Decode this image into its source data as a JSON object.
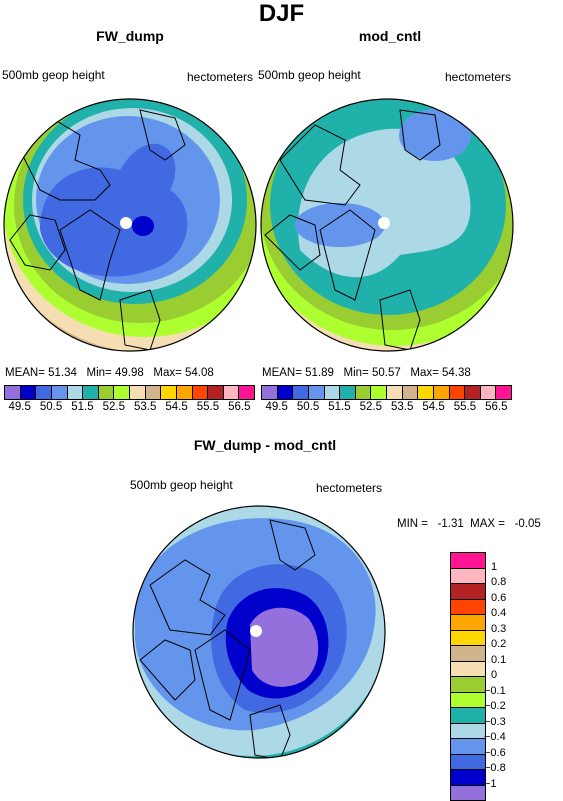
{
  "title": "DJF",
  "panels": [
    {
      "name": "FW_dump",
      "left_label": "500mb geop height",
      "right_label": "hectometers",
      "stats": {
        "mean_label": "MEAN=",
        "mean": "51.34",
        "min_label": "Min=",
        "min": "49.98",
        "max_label": "Max=",
        "max": "54.08"
      }
    },
    {
      "name": "mod_cntl",
      "left_label": "500mb geop height",
      "right_label": "hectometers",
      "stats": {
        "mean_label": "MEAN=",
        "mean": "51.89",
        "min_label": "Min=",
        "min": "50.57",
        "max_label": "Max=",
        "max": "54.38"
      }
    },
    {
      "name": "FW_dump - mod_cntl",
      "left_label": "500mb geop height",
      "right_label": "hectometers",
      "stats_text": "MIN =   -1.31  MAX =   -0.05"
    }
  ],
  "top_colorbar": {
    "colors": [
      "#9370db",
      "#0000cd",
      "#4169e1",
      "#6495ed",
      "#add8e6",
      "#20b2aa",
      "#9acd32",
      "#adff2f",
      "#f5deb3",
      "#d2b48c",
      "#ffd700",
      "#ffa500",
      "#ff4500",
      "#b22222",
      "#ffb6c1",
      "#ff1493"
    ],
    "labels": [
      "49.5",
      "50.5",
      "51.5",
      "52.5",
      "53.5",
      "54.5",
      "55.5",
      "56.5"
    ]
  },
  "diff_colorbar": {
    "colors_top_to_bottom": [
      "#ff1493",
      "#ffb6c1",
      "#b22222",
      "#ff4500",
      "#ffa500",
      "#ffd700",
      "#d2b48c",
      "#f5deb3",
      "#9acd32",
      "#adff2f",
      "#20b2aa",
      "#add8e6",
      "#6495ed",
      "#4169e1",
      "#0000cd",
      "#9370db"
    ],
    "labels_top_to_bottom": [
      "1",
      "0.8",
      "0.6",
      "0.4",
      "0.3",
      "0.2",
      "0.1",
      "0",
      "−0.1",
      "−0.2",
      "−0.3",
      "−0.4",
      "−0.6",
      "−0.8",
      "−1"
    ]
  }
}
